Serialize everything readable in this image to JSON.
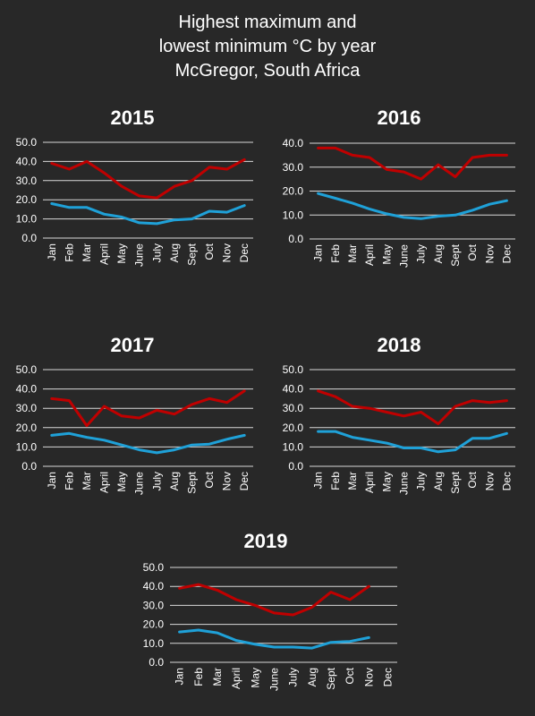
{
  "page": {
    "title_lines": [
      "Highest maximum and",
      "lowest minimum °C by year",
      "McGregor, South Africa"
    ]
  },
  "colors": {
    "background": "#282828",
    "max_series": "#c00000",
    "min_series": "#1fa1d8",
    "grid": "#d9d9d9",
    "text": "#ffffff"
  },
  "chart_data": [
    {
      "type": "line",
      "title": "2015",
      "categories": [
        "Jan",
        "Feb",
        "Mar",
        "April",
        "May",
        "June",
        "July",
        "Aug",
        "Sept",
        "Oct",
        "Nov",
        "Dec"
      ],
      "yticks": [
        "0.0",
        "10.0",
        "20.0",
        "30.0",
        "40.0",
        "50.0"
      ],
      "ylim": [
        0,
        50
      ],
      "grid": true,
      "series": [
        {
          "color": "#c00000",
          "values": [
            39,
            36,
            40,
            34,
            27,
            22,
            21,
            27,
            30,
            37,
            36,
            41
          ]
        },
        {
          "color": "#1fa1d8",
          "values": [
            18,
            16,
            16,
            12.5,
            11,
            8,
            7.5,
            9.5,
            10,
            14,
            13.5,
            17
          ]
        }
      ]
    },
    {
      "type": "line",
      "title": "2016",
      "categories": [
        "Jan",
        "Feb",
        "Mar",
        "April",
        "May",
        "June",
        "July",
        "Aug",
        "Sept",
        "Oct",
        "Nov",
        "Dec"
      ],
      "yticks": [
        "0.0",
        "10.0",
        "20.0",
        "30.0",
        "40.0"
      ],
      "ylim": [
        0,
        40
      ],
      "grid": true,
      "series": [
        {
          "color": "#c00000",
          "values": [
            38,
            38,
            35,
            34,
            29,
            28,
            25,
            31,
            26,
            34,
            35,
            35
          ]
        },
        {
          "color": "#1fa1d8",
          "values": [
            19,
            17,
            15,
            12.5,
            10.5,
            9,
            8.5,
            9.5,
            10,
            12,
            14.5,
            16
          ]
        }
      ]
    },
    {
      "type": "line",
      "title": "2017",
      "categories": [
        "Jan",
        "Feb",
        "Mar",
        "April",
        "May",
        "June",
        "July",
        "Aug",
        "Sept",
        "Oct",
        "Nov",
        "Dec"
      ],
      "yticks": [
        "0.0",
        "10.0",
        "20.0",
        "30.0",
        "40.0",
        "50.0"
      ],
      "ylim": [
        0,
        50
      ],
      "grid": true,
      "series": [
        {
          "color": "#c00000",
          "values": [
            35,
            34,
            21,
            31,
            26,
            25,
            29,
            27,
            32,
            35,
            33,
            39
          ]
        },
        {
          "color": "#1fa1d8",
          "values": [
            16,
            17,
            15,
            13.5,
            11,
            8.5,
            7,
            8.5,
            11,
            11.5,
            14,
            16
          ]
        }
      ]
    },
    {
      "type": "line",
      "title": "2018",
      "categories": [
        "Jan",
        "Feb",
        "Mar",
        "April",
        "May",
        "June",
        "July",
        "Aug",
        "Sept",
        "Oct",
        "Nov",
        "Dec"
      ],
      "yticks": [
        "0.0",
        "10.0",
        "20.0",
        "30.0",
        "40.0",
        "50.0"
      ],
      "ylim": [
        0,
        50
      ],
      "grid": true,
      "series": [
        {
          "color": "#c00000",
          "values": [
            39,
            36,
            31,
            30,
            28,
            26,
            28,
            22,
            31,
            34,
            33,
            34
          ]
        },
        {
          "color": "#1fa1d8",
          "values": [
            18,
            18,
            15,
            13.5,
            12,
            9.5,
            9.5,
            7.5,
            8.5,
            14.5,
            14.5,
            17
          ]
        }
      ]
    },
    {
      "type": "line",
      "title": "2019",
      "categories": [
        "Jan",
        "Feb",
        "Mar",
        "April",
        "May",
        "June",
        "July",
        "Aug",
        "Sept",
        "Oct",
        "Nov",
        "Dec"
      ],
      "yticks": [
        "0.0",
        "10.0",
        "20.0",
        "30.0",
        "40.0",
        "50.0"
      ],
      "ylim": [
        0,
        50
      ],
      "grid": true,
      "series": [
        {
          "color": "#c00000",
          "values": [
            39,
            41,
            38,
            33,
            30,
            26,
            25,
            29,
            37,
            33,
            40,
            null
          ]
        },
        {
          "color": "#1fa1d8",
          "values": [
            16,
            17,
            15.5,
            11.5,
            9.5,
            8,
            8,
            7.5,
            10.5,
            11,
            13,
            null
          ]
        }
      ]
    }
  ]
}
